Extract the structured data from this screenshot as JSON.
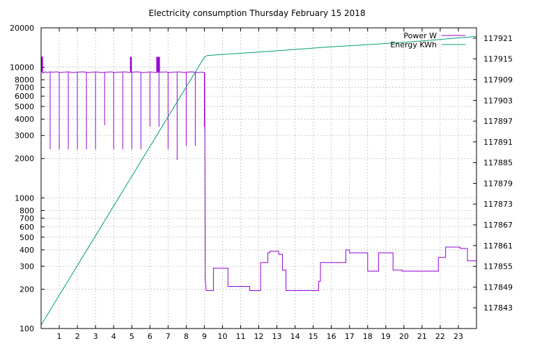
{
  "chart_data": {
    "type": "line",
    "title": "Electricity consumption Thursday February 15 2018",
    "xlim": [
      0,
      24
    ],
    "x_ticks": [
      1,
      2,
      3,
      4,
      5,
      6,
      7,
      8,
      9,
      10,
      11,
      12,
      13,
      14,
      15,
      16,
      17,
      18,
      19,
      20,
      21,
      22,
      23
    ],
    "y_left": {
      "scale": "log",
      "lim": [
        100,
        20000
      ],
      "ticks": [
        100,
        200,
        300,
        400,
        500,
        600,
        700,
        800,
        1000,
        2000,
        3000,
        4000,
        5000,
        6000,
        7000,
        8000,
        10000,
        20000
      ]
    },
    "y_right": {
      "scale": "linear",
      "lim": [
        117837,
        117924
      ],
      "ticks": [
        117843,
        117849,
        117855,
        117861,
        117867,
        117873,
        117879,
        117885,
        117891,
        117897,
        117903,
        117909,
        117915,
        117921
      ]
    },
    "grid": true,
    "legend_position": "top-right",
    "series": [
      {
        "name": "Power W",
        "color": "#9400d3",
        "axis": "left",
        "x": [
          0,
          0.05,
          0.05,
          0.1,
          0.15,
          0.2,
          0.35,
          0.5,
          0.6,
          0.9,
          1.0,
          1.3,
          1.5,
          1.7,
          2.0,
          2.3,
          2.6,
          2.9,
          3.0,
          3.3,
          3.6,
          3.9,
          4.0,
          4.3,
          4.6,
          4.9,
          5.0,
          5.3,
          5.6,
          5.9,
          6.0,
          6.3,
          6.6,
          6.9,
          7.0,
          7.3,
          7.6,
          7.9,
          8.0,
          8.3,
          8.6,
          8.85,
          9.0,
          9.02,
          9.05,
          9.1,
          9.1,
          9.5,
          9.5,
          10.3,
          10.3,
          11.5,
          11.5,
          12.1,
          12.1,
          12.5,
          12.5,
          12.6,
          12.6,
          13.1,
          13.1,
          13.3,
          13.3,
          13.5,
          13.5,
          15.3,
          15.3,
          15.4,
          15.4,
          16.8,
          16.8,
          17.0,
          17.0,
          18.0,
          18.0,
          18.6,
          18.6,
          19.4,
          19.4,
          19.9,
          19.9,
          21.9,
          21.9,
          22.3,
          22.3,
          23.1,
          23.1,
          23.5,
          23.5,
          24
        ],
        "y": [
          12000,
          12000,
          9300,
          9000,
          9100,
          9200,
          9100,
          9200,
          9150,
          9200,
          9100,
          9150,
          9200,
          9100,
          9150,
          9200,
          9100,
          9150,
          9200,
          9100,
          9150,
          9200,
          9100,
          9150,
          9200,
          9100,
          9150,
          9200,
          9100,
          9150,
          9200,
          9100,
          9150,
          9200,
          9100,
          9150,
          9200,
          9100,
          9150,
          9200,
          9100,
          9150,
          9100,
          9000,
          240,
          195,
          195,
          195,
          290,
          290,
          210,
          210,
          195,
          195,
          320,
          320,
          380,
          380,
          390,
          390,
          370,
          370,
          280,
          280,
          195,
          195,
          230,
          230,
          320,
          320,
          400,
          400,
          380,
          380,
          275,
          275,
          380,
          380,
          280,
          280,
          275,
          275,
          350,
          350,
          420,
          420,
          410,
          410,
          330,
          330
        ]
      },
      {
        "name": "Energy KWh",
        "color": "#009e73",
        "axis": "right",
        "x": [
          0,
          9.0,
          9.15,
          12.0,
          16.0,
          20.0,
          24.0
        ],
        "y": [
          117838,
          117915.5,
          117916,
          117917,
          117918.5,
          117919.8,
          117921.5
        ]
      }
    ],
    "power_dips": [
      {
        "x": 0.5,
        "y": 2350
      },
      {
        "x": 1.0,
        "y": 2350
      },
      {
        "x": 1.5,
        "y": 2350
      },
      {
        "x": 2.0,
        "y": 2350
      },
      {
        "x": 2.5,
        "y": 2350
      },
      {
        "x": 3.0,
        "y": 2350
      },
      {
        "x": 3.5,
        "y": 3600
      },
      {
        "x": 4.0,
        "y": 2350
      },
      {
        "x": 4.5,
        "y": 2350
      },
      {
        "x": 5.0,
        "y": 2350
      },
      {
        "x": 5.5,
        "y": 2350
      },
      {
        "x": 6.0,
        "y": 3500
      },
      {
        "x": 6.5,
        "y": 3500
      },
      {
        "x": 7.0,
        "y": 2350
      },
      {
        "x": 7.5,
        "y": 1950
      },
      {
        "x": 8.0,
        "y": 2500
      },
      {
        "x": 8.5,
        "y": 2500
      },
      {
        "x": 9.0,
        "y": 3500
      }
    ],
    "power_spikes": [
      {
        "x": 0.05,
        "y": 12000
      },
      {
        "x": 4.95,
        "y": 12000
      },
      {
        "x": 6.4,
        "y": 12000
      },
      {
        "x": 6.5,
        "y": 12000
      }
    ]
  }
}
